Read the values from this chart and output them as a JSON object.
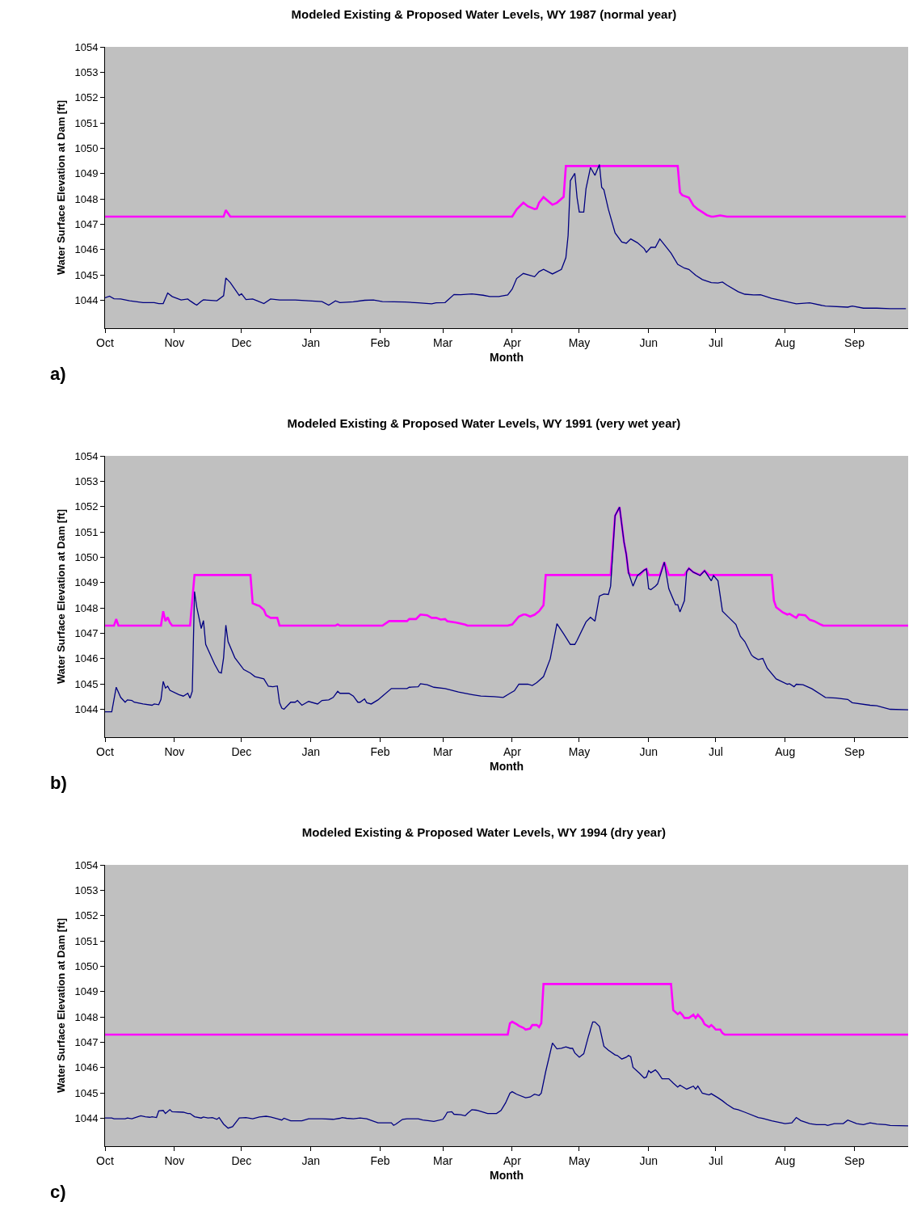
{
  "chart_data": [
    {
      "type": "line",
      "title": "Modeled Existing & Proposed Water Levels, WY 1987 (normal year)",
      "xlabel": "Month",
      "ylabel": "Water Surface Elevation at Dam [ft]",
      "annotations": [
        "a)"
      ],
      "xlim": [
        "1986-10-01",
        "1987-09-25"
      ],
      "xticks": [
        {
          "value": "1986-10-01",
          "label": "Oct"
        },
        {
          "value": "1986-11-01",
          "label": "Nov"
        },
        {
          "value": "1986-12-01",
          "label": "Dec"
        },
        {
          "value": "1987-01-01",
          "label": "Jan"
        },
        {
          "value": "1987-02-01",
          "label": "Feb"
        },
        {
          "value": "1987-03-01",
          "label": "Mar"
        },
        {
          "value": "1987-04-01",
          "label": "Apr"
        },
        {
          "value": "1987-05-01",
          "label": "May"
        },
        {
          "value": "1987-06-01",
          "label": "Jun"
        },
        {
          "value": "1987-07-01",
          "label": "Jul"
        },
        {
          "value": "1987-08-01",
          "label": "Aug"
        },
        {
          "value": "1987-09-01",
          "label": "Sep"
        }
      ],
      "ylim": [
        1042.9,
        1054
      ],
      "yticks": [
        1044,
        1045,
        1046,
        1047,
        1048,
        1049,
        1050,
        1051,
        1052,
        1053,
        1054
      ],
      "grid": false,
      "marker": "none",
      "line_style": "solid",
      "series": [
        {
          "color": "#ff00ff",
          "x": [
            "1986-10-01",
            "1986-11-23",
            "1986-11-24",
            "1986-11-26",
            "1987-04-01",
            "1987-04-03",
            "1987-04-06",
            "1987-04-08",
            "1987-04-11",
            "1987-04-12",
            "1987-04-13",
            "1987-04-15",
            "1987-04-19",
            "1987-04-21",
            "1987-04-24",
            "1987-04-25",
            "1987-06-14",
            "1987-06-15",
            "1987-06-16",
            "1987-06-19",
            "1987-06-21",
            "1987-06-23",
            "1987-06-25",
            "1987-06-27",
            "1987-06-29",
            "1987-06-30",
            "1987-07-03",
            "1987-07-06",
            "1987-09-24"
          ],
          "values": [
            1047.3,
            1047.3,
            1047.56,
            1047.3,
            1047.3,
            1047.59,
            1047.85,
            1047.71,
            1047.6,
            1047.62,
            1047.85,
            1048.07,
            1047.77,
            1047.85,
            1048.08,
            1049.3,
            1049.3,
            1048.26,
            1048.15,
            1048.05,
            1047.74,
            1047.59,
            1047.48,
            1047.36,
            1047.3,
            1047.3,
            1047.35,
            1047.3,
            1047.3
          ]
        },
        {
          "color": "#000080",
          "x": [
            "1986-10-01",
            "1986-10-03",
            "1986-10-05",
            "1986-10-08",
            "1986-10-12",
            "1986-10-18",
            "1986-10-23",
            "1986-10-25",
            "1986-10-27",
            "1986-10-29",
            "1986-10-31",
            "1986-11-04",
            "1986-11-07",
            "1986-11-08",
            "1986-11-10",
            "1986-11-11",
            "1986-11-13",
            "1986-11-14",
            "1986-11-20",
            "1986-11-23",
            "1986-11-24",
            "1986-11-26",
            "1986-11-30",
            "1986-12-01",
            "1986-12-03",
            "1986-12-06",
            "1986-12-08",
            "1986-12-11",
            "1986-12-14",
            "1986-12-18",
            "1986-12-25",
            "1986-12-31",
            "1987-01-06",
            "1987-01-09",
            "1987-01-12",
            "1987-01-14",
            "1987-01-20",
            "1987-01-25",
            "1987-01-29",
            "1987-02-02",
            "1987-02-12",
            "1987-02-18",
            "1987-02-24",
            "1987-02-26",
            "1987-03-02",
            "1987-03-06",
            "1987-03-09",
            "1987-03-14",
            "1987-03-19",
            "1987-03-22",
            "1987-03-26",
            "1987-03-30",
            "1987-04-01",
            "1987-04-03",
            "1987-04-06",
            "1987-04-11",
            "1987-04-13",
            "1987-04-15",
            "1987-04-19",
            "1987-04-23",
            "1987-04-25",
            "1987-04-26",
            "1987-04-27",
            "1987-04-29",
            "1987-04-30",
            "1987-05-01",
            "1987-05-03",
            "1987-05-04",
            "1987-05-06",
            "1987-05-08",
            "1987-05-10",
            "1987-05-11",
            "1987-05-12",
            "1987-05-14",
            "1987-05-17",
            "1987-05-20",
            "1987-05-22",
            "1987-05-24",
            "1987-05-27",
            "1987-05-30",
            "1987-05-31",
            "1987-06-02",
            "1987-06-04",
            "1987-06-06",
            "1987-06-08",
            "1987-06-11",
            "1987-06-14",
            "1987-06-17",
            "1987-06-19",
            "1987-06-22",
            "1987-06-25",
            "1987-06-29",
            "1987-07-02",
            "1987-07-04",
            "1987-07-06",
            "1987-07-11",
            "1987-07-14",
            "1987-07-18",
            "1987-07-21",
            "1987-07-26",
            "1987-07-31",
            "1987-08-06",
            "1987-08-12",
            "1987-08-19",
            "1987-08-29",
            "1987-08-31",
            "1987-09-05",
            "1987-09-11",
            "1987-09-17",
            "1987-09-24"
          ],
          "values": [
            1044.1,
            1044.16,
            1044.06,
            1044.05,
            1043.98,
            1043.91,
            1043.91,
            1043.87,
            1043.87,
            1044.29,
            1044.15,
            1044.01,
            1044.05,
            1043.98,
            1043.86,
            1043.81,
            1043.96,
            1044.02,
            1043.98,
            1044.18,
            1044.88,
            1044.7,
            1044.19,
            1044.26,
            1044.03,
            1044.05,
            1043.98,
            1043.87,
            1044.05,
            1044.01,
            1044.01,
            1043.98,
            1043.95,
            1043.81,
            1043.98,
            1043.91,
            1043.94,
            1044,
            1044.01,
            1043.95,
            1043.93,
            1043.9,
            1043.86,
            1043.9,
            1043.91,
            1044.23,
            1044.22,
            1044.25,
            1044.2,
            1044.15,
            1044.15,
            1044.21,
            1044.44,
            1044.86,
            1045.06,
            1044.93,
            1045.13,
            1045.22,
            1045.04,
            1045.22,
            1045.68,
            1046.56,
            1048.72,
            1049.01,
            1048.05,
            1047.48,
            1047.48,
            1048.41,
            1049.24,
            1048.93,
            1049.36,
            1048.46,
            1048.36,
            1047.59,
            1046.66,
            1046.3,
            1046.25,
            1046.42,
            1046.27,
            1046.04,
            1045.89,
            1046.09,
            1046.09,
            1046.42,
            1046.2,
            1045.86,
            1045.42,
            1045.27,
            1045.22,
            1044.99,
            1044.82,
            1044.7,
            1044.68,
            1044.72,
            1044.6,
            1044.34,
            1044.24,
            1044.21,
            1044.22,
            1044.08,
            1043.98,
            1043.86,
            1043.9,
            1043.77,
            1043.73,
            1043.77,
            1043.69,
            1043.69,
            1043.67,
            1043.67
          ]
        }
      ]
    },
    {
      "type": "line",
      "title": "Modeled Existing & Proposed Water Levels, WY 1991 (very wet year)",
      "xlabel": "Month",
      "ylabel": "Water Surface Elevation at Dam [ft]",
      "annotations": [
        "b)"
      ],
      "xlim": [
        "1990-10-01",
        "1991-09-25"
      ],
      "xticks": [
        {
          "value": "1990-10-01",
          "label": "Oct"
        },
        {
          "value": "1990-11-01",
          "label": "Nov"
        },
        {
          "value": "1990-12-01",
          "label": "Dec"
        },
        {
          "value": "1991-01-01",
          "label": "Jan"
        },
        {
          "value": "1991-02-01",
          "label": "Feb"
        },
        {
          "value": "1991-03-01",
          "label": "Mar"
        },
        {
          "value": "1991-04-01",
          "label": "Apr"
        },
        {
          "value": "1991-05-01",
          "label": "May"
        },
        {
          "value": "1991-06-01",
          "label": "Jun"
        },
        {
          "value": "1991-07-01",
          "label": "Jul"
        },
        {
          "value": "1991-08-01",
          "label": "Aug"
        },
        {
          "value": "1991-09-01",
          "label": "Sep"
        }
      ],
      "ylim": [
        1042.9,
        1054
      ],
      "yticks": [
        1044,
        1045,
        1046,
        1047,
        1048,
        1049,
        1050,
        1051,
        1052,
        1053,
        1054
      ],
      "grid": false,
      "marker": "none",
      "line_style": "solid",
      "series": [
        {
          "color": "#ff00ff",
          "x": [
            "1990-10-01",
            "1990-10-05",
            "1990-10-06",
            "1990-10-07",
            "1990-10-26",
            "1990-10-27",
            "1990-10-28",
            "1990-10-29",
            "1990-10-30",
            "1990-10-31",
            "1990-11-08",
            "1990-11-10",
            "1990-12-05",
            "1990-12-06",
            "1990-12-08",
            "1990-12-09",
            "1990-12-11",
            "1990-12-12",
            "1990-12-14",
            "1990-12-17",
            "1990-12-18",
            "1991-01-12",
            "1991-01-13",
            "1991-01-14",
            "1991-02-02",
            "1991-02-05",
            "1991-02-13",
            "1991-02-14",
            "1991-02-17",
            "1991-02-19",
            "1991-02-22",
            "1991-02-24",
            "1991-02-26",
            "1991-02-28",
            "1991-03-02",
            "1991-03-03",
            "1991-03-07",
            "1991-03-11",
            "1991-03-12",
            "1991-03-30",
            "1991-04-01",
            "1991-04-04",
            "1991-04-06",
            "1991-04-07",
            "1991-04-09",
            "1991-04-11",
            "1991-04-13",
            "1991-04-15",
            "1991-04-16",
            "1991-05-15",
            "1991-05-17",
            "1991-05-19",
            "1991-05-21",
            "1991-05-22",
            "1991-05-23",
            "1991-05-24",
            "1991-05-28",
            "1991-05-30",
            "1991-05-31",
            "1991-06-01",
            "1991-06-06",
            "1991-06-08",
            "1991-06-10",
            "1991-06-17",
            "1991-06-19",
            "1991-06-21",
            "1991-06-24",
            "1991-06-26",
            "1991-06-28",
            "1991-07-02",
            "1991-07-26",
            "1991-07-27",
            "1991-07-28",
            "1991-07-31",
            "1991-08-02",
            "1991-08-03",
            "1991-08-05",
            "1991-08-06",
            "1991-08-07",
            "1991-08-10",
            "1991-08-12",
            "1991-08-14",
            "1991-08-17",
            "1991-08-18",
            "1991-09-25"
          ],
          "values": [
            1047.3,
            1047.3,
            1047.56,
            1047.3,
            1047.3,
            1047.87,
            1047.48,
            1047.63,
            1047.42,
            1047.3,
            1047.3,
            1049.3,
            1049.3,
            1048.18,
            1048.11,
            1048.08,
            1047.92,
            1047.71,
            1047.61,
            1047.61,
            1047.3,
            1047.3,
            1047.35,
            1047.3,
            1047.3,
            1047.48,
            1047.48,
            1047.56,
            1047.56,
            1047.74,
            1047.71,
            1047.61,
            1047.61,
            1047.54,
            1047.56,
            1047.48,
            1047.42,
            1047.34,
            1047.3,
            1047.3,
            1047.35,
            1047.66,
            1047.74,
            1047.74,
            1047.66,
            1047.73,
            1047.87,
            1048.11,
            1049.3,
            1049.3,
            1051.64,
            1051.98,
            1050.59,
            1050.12,
            1049.39,
            1049.3,
            1049.3,
            1049.49,
            1049.54,
            1049.3,
            1049.3,
            1049.81,
            1049.3,
            1049.3,
            1049.56,
            1049.41,
            1049.3,
            1049.47,
            1049.3,
            1049.3,
            1049.3,
            1048.29,
            1048.03,
            1047.82,
            1047.74,
            1047.77,
            1047.66,
            1047.61,
            1047.74,
            1047.71,
            1047.53,
            1047.48,
            1047.34,
            1047.3,
            1047.3
          ]
        },
        {
          "color": "#000080",
          "x": [
            "1990-10-01",
            "1990-10-04",
            "1990-10-06",
            "1990-10-08",
            "1990-10-10",
            "1990-10-11",
            "1990-10-13",
            "1990-10-14",
            "1990-10-18",
            "1990-10-22",
            "1990-10-23",
            "1990-10-25",
            "1990-10-26",
            "1990-10-27",
            "1990-10-28",
            "1990-10-29",
            "1990-10-30",
            "1990-11-03",
            "1990-11-05",
            "1990-11-07",
            "1990-11-08",
            "1990-11-09",
            "1990-11-10",
            "1990-11-11",
            "1990-11-13",
            "1990-11-14",
            "1990-11-15",
            "1990-11-19",
            "1990-11-21",
            "1990-11-22",
            "1990-11-23",
            "1990-11-24",
            "1990-11-25",
            "1990-11-28",
            "1990-12-02",
            "1990-12-05",
            "1990-12-07",
            "1990-12-11",
            "1990-12-13",
            "1990-12-15",
            "1990-12-17",
            "1990-12-18",
            "1990-12-19",
            "1990-12-20",
            "1990-12-23",
            "1990-12-25",
            "1990-12-26",
            "1990-12-28",
            "1990-12-31",
            "1991-01-04",
            "1991-01-06",
            "1991-01-09",
            "1991-01-11",
            "1991-01-13",
            "1991-01-14",
            "1991-01-18",
            "1991-01-20",
            "1991-01-22",
            "1991-01-23",
            "1991-01-25",
            "1991-01-26",
            "1991-01-28",
            "1991-01-31",
            "1991-02-02",
            "1991-02-06",
            "1991-02-13",
            "1991-02-14",
            "1991-02-18",
            "1991-02-19",
            "1991-02-22",
            "1991-02-25",
            "1991-03-02",
            "1991-03-08",
            "1991-03-14",
            "1991-03-18",
            "1991-03-24",
            "1991-03-28",
            "1991-03-31",
            "1991-04-02",
            "1991-04-04",
            "1991-04-08",
            "1991-04-10",
            "1991-04-12",
            "1991-04-15",
            "1991-04-18",
            "1991-04-21",
            "1991-04-24",
            "1991-04-27",
            "1991-04-29",
            "1991-04-30",
            "1991-05-04",
            "1991-05-06",
            "1991-05-08",
            "1991-05-10",
            "1991-05-12",
            "1991-05-14",
            "1991-05-15",
            "1991-05-17",
            "1991-05-19",
            "1991-05-21",
            "1991-05-22",
            "1991-05-23",
            "1991-05-25",
            "1991-05-27",
            "1991-05-30",
            "1991-05-31",
            "1991-06-01",
            "1991-06-02",
            "1991-06-04",
            "1991-06-05",
            "1991-06-08",
            "1991-06-10",
            "1991-06-13",
            "1991-06-14",
            "1991-06-15",
            "1991-06-17",
            "1991-06-18",
            "1991-06-19",
            "1991-06-21",
            "1991-06-24",
            "1991-06-26",
            "1991-06-29",
            "1991-06-30",
            "1991-07-02",
            "1991-07-04",
            "1991-07-07",
            "1991-07-10",
            "1991-07-12",
            "1991-07-14",
            "1991-07-17",
            "1991-07-18",
            "1991-07-20",
            "1991-07-22",
            "1991-07-24",
            "1991-07-28",
            "1991-08-02",
            "1991-08-03",
            "1991-08-05",
            "1991-08-06",
            "1991-08-09",
            "1991-08-13",
            "1991-08-19",
            "1991-08-24",
            "1991-08-29",
            "1991-08-31",
            "1991-09-08",
            "1991-09-11",
            "1991-09-17",
            "1991-09-25"
          ],
          "values": [
            1043.9,
            1043.9,
            1044.87,
            1044.47,
            1044.28,
            1044.37,
            1044.35,
            1044.28,
            1044.21,
            1044.16,
            1044.21,
            1044.18,
            1044.39,
            1045.1,
            1044.84,
            1044.91,
            1044.75,
            1044.58,
            1044.52,
            1044.63,
            1044.44,
            1044.71,
            1048.65,
            1048.03,
            1047.19,
            1047.5,
            1046.56,
            1045.78,
            1045.46,
            1045.43,
            1046.04,
            1047.32,
            1046.67,
            1046.04,
            1045.57,
            1045.43,
            1045.29,
            1045.2,
            1044.91,
            1044.89,
            1044.92,
            1044.26,
            1044.05,
            1044,
            1044.28,
            1044.28,
            1044.35,
            1044.16,
            1044.31,
            1044.21,
            1044.35,
            1044.37,
            1044.47,
            1044.71,
            1044.63,
            1044.63,
            1044.52,
            1044.28,
            1044.28,
            1044.41,
            1044.26,
            1044.21,
            1044.37,
            1044.52,
            1044.82,
            1044.82,
            1044.87,
            1044.89,
            1045.01,
            1044.97,
            1044.87,
            1044.82,
            1044.68,
            1044.58,
            1044.52,
            1044.5,
            1044.47,
            1044.63,
            1044.73,
            1044.99,
            1044.99,
            1044.94,
            1045.05,
            1045.29,
            1045.99,
            1047.38,
            1046.98,
            1046.56,
            1046.56,
            1046.72,
            1047.45,
            1047.63,
            1047.48,
            1048.47,
            1048.55,
            1048.53,
            1048.86,
            1051.64,
            1051.98,
            1050.59,
            1050.12,
            1049.39,
            1048.86,
            1049.28,
            1049.49,
            1049.54,
            1048.76,
            1048.72,
            1048.86,
            1048.95,
            1049.81,
            1048.76,
            1048.13,
            1048.13,
            1047.84,
            1048.29,
            1049.44,
            1049.56,
            1049.41,
            1049.28,
            1049.47,
            1049.07,
            1049.28,
            1049.07,
            1047.87,
            1047.61,
            1047.35,
            1046.88,
            1046.67,
            1046.14,
            1046.06,
            1045.96,
            1046.01,
            1045.62,
            1045.2,
            1044.99,
            1045.01,
            1044.89,
            1044.99,
            1044.97,
            1044.81,
            1044.47,
            1044.44,
            1044.39,
            1044.26,
            1044.16,
            1044.14,
            1044,
            1043.98
          ]
        }
      ]
    },
    {
      "type": "line",
      "title": "Modeled Existing & Proposed Water Levels, WY 1994 (dry year)",
      "xlabel": "Month",
      "ylabel": "Water Surface Elevation at Dam [ft]",
      "annotations": [
        "c)"
      ],
      "xlim": [
        "1993-10-01",
        "1994-09-25"
      ],
      "xticks": [
        {
          "value": "1993-10-01",
          "label": "Oct"
        },
        {
          "value": "1993-11-01",
          "label": "Nov"
        },
        {
          "value": "1993-12-01",
          "label": "Dec"
        },
        {
          "value": "1994-01-01",
          "label": "Jan"
        },
        {
          "value": "1994-02-01",
          "label": "Feb"
        },
        {
          "value": "1994-03-01",
          "label": "Mar"
        },
        {
          "value": "1994-04-01",
          "label": "Apr"
        },
        {
          "value": "1994-05-01",
          "label": "May"
        },
        {
          "value": "1994-06-01",
          "label": "Jun"
        },
        {
          "value": "1994-07-01",
          "label": "Jul"
        },
        {
          "value": "1994-08-01",
          "label": "Aug"
        },
        {
          "value": "1994-09-01",
          "label": "Sep"
        }
      ],
      "ylim": [
        1042.9,
        1054
      ],
      "yticks": [
        1044,
        1045,
        1046,
        1047,
        1048,
        1049,
        1050,
        1051,
        1052,
        1053,
        1054
      ],
      "grid": false,
      "marker": "none",
      "line_style": "solid",
      "series": [
        {
          "color": "#ff00ff",
          "x": [
            "1993-10-01",
            "1994-03-30",
            "1994-03-31",
            "1994-04-01",
            "1994-04-03",
            "1994-04-04",
            "1994-04-06",
            "1994-04-07",
            "1994-04-09",
            "1994-04-10",
            "1994-04-12",
            "1994-04-13",
            "1994-04-14",
            "1994-04-15",
            "1994-06-11",
            "1994-06-12",
            "1994-06-14",
            "1994-06-15",
            "1994-06-16",
            "1994-06-17",
            "1994-06-19",
            "1994-06-21",
            "1994-06-22",
            "1994-06-23",
            "1994-06-25",
            "1994-06-26",
            "1994-06-28",
            "1994-06-29",
            "1994-06-30",
            "1994-07-01",
            "1994-07-03",
            "1994-07-04",
            "1994-07-05",
            "1994-09-25"
          ],
          "values": [
            1047.3,
            1047.3,
            1047.75,
            1047.81,
            1047.71,
            1047.65,
            1047.57,
            1047.5,
            1047.54,
            1047.68,
            1047.68,
            1047.6,
            1047.75,
            1049.3,
            1049.3,
            1048.27,
            1048.11,
            1048.18,
            1048.09,
            1047.96,
            1047.96,
            1048.09,
            1047.96,
            1048.09,
            1047.89,
            1047.71,
            1047.6,
            1047.68,
            1047.6,
            1047.5,
            1047.5,
            1047.36,
            1047.3,
            1047.3
          ]
        },
        {
          "color": "#000080",
          "x": [
            "1993-10-01",
            "1993-10-04",
            "1993-10-05",
            "1993-10-10",
            "1993-10-11",
            "1993-10-13",
            "1993-10-14",
            "1993-10-17",
            "1993-10-19",
            "1993-10-21",
            "1993-10-22",
            "1993-10-24",
            "1993-10-25",
            "1993-10-27",
            "1993-10-28",
            "1993-10-30",
            "1993-10-31",
            "1993-11-05",
            "1993-11-07",
            "1993-11-08",
            "1993-11-10",
            "1993-11-13",
            "1993-11-14",
            "1993-11-16",
            "1993-11-18",
            "1993-11-20",
            "1993-11-21",
            "1993-11-23",
            "1993-11-25",
            "1993-11-27",
            "1993-11-30",
            "1993-12-03",
            "1993-12-06",
            "1993-12-09",
            "1993-12-12",
            "1993-12-14",
            "1993-12-17",
            "1993-12-19",
            "1993-12-20",
            "1993-12-23",
            "1993-12-28",
            "1993-12-31",
            "1994-01-06",
            "1994-01-11",
            "1994-01-14",
            "1994-01-15",
            "1994-01-17",
            "1994-01-20",
            "1994-01-23",
            "1994-01-26",
            "1994-01-31",
            "1994-02-06",
            "1994-02-07",
            "1994-02-08",
            "1994-02-11",
            "1994-02-13",
            "1994-02-18",
            "1994-02-20",
            "1994-02-23",
            "1994-02-25",
            "1994-03-01",
            "1994-03-02",
            "1994-03-03",
            "1994-03-05",
            "1994-03-06",
            "1994-03-09",
            "1994-03-11",
            "1994-03-12",
            "1994-03-14",
            "1994-03-16",
            "1994-03-19",
            "1994-03-21",
            "1994-03-25",
            "1994-03-27",
            "1994-03-29",
            "1994-03-31",
            "1994-04-01",
            "1994-04-03",
            "1994-04-07",
            "1994-04-09",
            "1994-04-11",
            "1994-04-13",
            "1994-04-14",
            "1994-04-16",
            "1994-04-19",
            "1994-04-21",
            "1994-04-23",
            "1994-04-25",
            "1994-04-27",
            "1994-04-28",
            "1994-04-29",
            "1994-05-01",
            "1994-05-03",
            "1994-05-05",
            "1994-05-07",
            "1994-05-08",
            "1994-05-10",
            "1994-05-12",
            "1994-05-14",
            "1994-05-17",
            "1994-05-18",
            "1994-05-20",
            "1994-05-22",
            "1994-05-23",
            "1994-05-24",
            "1994-05-25",
            "1994-05-28",
            "1994-05-30",
            "1994-05-31",
            "1994-06-01",
            "1994-06-02",
            "1994-06-04",
            "1994-06-05",
            "1994-06-07",
            "1994-06-10",
            "1994-06-12",
            "1994-06-14",
            "1994-06-15",
            "1994-06-18",
            "1994-06-21",
            "1994-06-22",
            "1994-06-23",
            "1994-06-25",
            "1994-06-28",
            "1994-06-29",
            "1994-07-02",
            "1994-07-04",
            "1994-07-06",
            "1994-07-09",
            "1994-07-11",
            "1994-07-14",
            "1994-07-20",
            "1994-07-22",
            "1994-07-26",
            "1994-08-01",
            "1994-08-04",
            "1994-08-06",
            "1994-08-08",
            "1994-08-12",
            "1994-08-15",
            "1994-08-19",
            "1994-08-20",
            "1994-08-23",
            "1994-08-27",
            "1994-08-29",
            "1994-09-02",
            "1994-09-05",
            "1994-09-08",
            "1994-09-11",
            "1994-09-15",
            "1994-09-17",
            "1994-09-25"
          ],
          "values": [
            1044.01,
            1044.01,
            1043.98,
            1043.98,
            1044.01,
            1043.98,
            1044.01,
            1044.1,
            1044.06,
            1044.04,
            1044.06,
            1044.03,
            1044.29,
            1044.31,
            1044.19,
            1044.34,
            1044.26,
            1044.24,
            1044.19,
            1044.19,
            1044.06,
            1044.01,
            1044.05,
            1044.01,
            1044.03,
            1043.96,
            1044.03,
            1043.77,
            1043.61,
            1043.67,
            1044.01,
            1044.03,
            1043.98,
            1044.05,
            1044.08,
            1044.05,
            1043.98,
            1043.93,
            1044,
            1043.9,
            1043.9,
            1043.98,
            1043.98,
            1043.96,
            1044,
            1044.03,
            1044,
            1043.98,
            1044.01,
            1043.98,
            1043.82,
            1043.82,
            1043.72,
            1043.77,
            1043.96,
            1043.98,
            1043.98,
            1043.93,
            1043.9,
            1043.88,
            1043.96,
            1044.08,
            1044.24,
            1044.26,
            1044.16,
            1044.14,
            1044.1,
            1044.19,
            1044.34,
            1044.32,
            1044.24,
            1044.19,
            1044.19,
            1044.31,
            1044.6,
            1044.99,
            1045.05,
            1044.95,
            1044.81,
            1044.84,
            1044.95,
            1044.9,
            1044.99,
            1045.85,
            1046.97,
            1046.74,
            1046.76,
            1046.82,
            1046.76,
            1046.76,
            1046.58,
            1046.41,
            1046.55,
            1047.21,
            1047.8,
            1047.8,
            1047.63,
            1046.84,
            1046.69,
            1046.5,
            1046.48,
            1046.34,
            1046.41,
            1046.48,
            1046.43,
            1046.01,
            1045.77,
            1045.59,
            1045.63,
            1045.88,
            1045.8,
            1045.91,
            1045.82,
            1045.56,
            1045.56,
            1045.39,
            1045.23,
            1045.31,
            1045.15,
            1045.27,
            1045.15,
            1045.27,
            1044.99,
            1044.92,
            1044.97,
            1044.81,
            1044.69,
            1044.55,
            1044.38,
            1044.34,
            1044.24,
            1044.03,
            1044,
            1043.9,
            1043.79,
            1043.82,
            1044.03,
            1043.91,
            1043.79,
            1043.75,
            1043.75,
            1043.72,
            1043.79,
            1043.79,
            1043.93,
            1043.79,
            1043.75,
            1043.82,
            1043.77,
            1043.75,
            1043.72,
            1043.7
          ]
        }
      ]
    }
  ]
}
